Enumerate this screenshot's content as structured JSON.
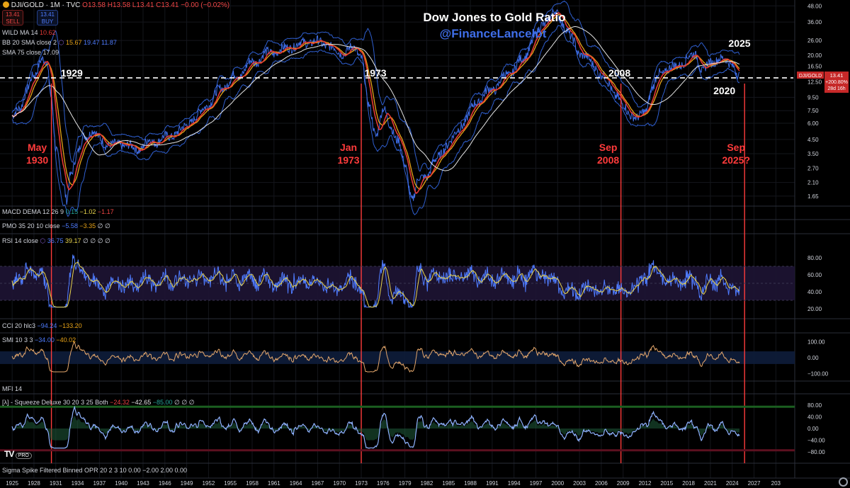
{
  "header": {
    "symbol_line": "DJI/GOLD · 1M · TVC",
    "ohlc": {
      "o": "O13.58",
      "h": "H13.58",
      "l": "L13.41",
      "c": "C13.41",
      "change": "−0.00 (−0.02%)"
    },
    "sell": {
      "price": "13.41",
      "label": "SELL"
    },
    "buy": {
      "price": "13.41",
      "label": "BUY"
    }
  },
  "indicators": {
    "wild_ma": {
      "name": "WILD MA 14",
      "value": "10.62"
    },
    "bb": {
      "name": "BB 20 SMA close 2",
      "v1": "15.67",
      "v2": "19.47",
      "v3": "11.87"
    },
    "sma": {
      "name": "SMA 75 close",
      "value": "17.09"
    },
    "macd": {
      "name": "MACD DEMA 12 26 9",
      "v1": "0.15",
      "v2": "−1.02",
      "v3": "−1.17"
    },
    "pmo": {
      "name": "PMO 35 20 10 close",
      "v1": "−5.58",
      "v2": "−3.35",
      "rest": "∅ ∅"
    },
    "rsi": {
      "name": "RSI 14 close",
      "v1": "36.75",
      "v2": "39.17",
      "rest": "∅ ∅ ∅ ∅"
    },
    "cci": {
      "name": "CCI 20 hlc3",
      "v1": "−94.24",
      "v2": "−133.20"
    },
    "smi": {
      "name": "SMI 10 3 3",
      "v1": "−34.00",
      "v2": "−40.02"
    },
    "mfi": {
      "name": "MFI 14"
    },
    "squeeze": {
      "name": "[λ] - Squeeze Deluxe 30 20 3 25 Both",
      "v1": "−24.32",
      "v2": "−42.65",
      "v3": "−85.00",
      "rest": "∅ ∅ ∅"
    },
    "sigma": {
      "name": "Sigma Spike Filtered Binned OPR 20 2 3 10",
      "v1": "0.00",
      "v2": "−2.00",
      "v3": "2.00",
      "v4": "0.00"
    }
  },
  "price_tag": {
    "symbol": "DJI/GOLD",
    "value": "13.41",
    "pct": "+200.80%",
    "countdown": "28d 16h"
  },
  "branding": {
    "logo": "TV",
    "pro": "PRO"
  },
  "chart_data": {
    "type": "line",
    "title": "Dow Jones to Gold Ratio",
    "subtitle": "@FinanceLancelot",
    "yscale": "log",
    "ylim": [
      1.4,
      50
    ],
    "xlim": [
      1924.5,
      2032.5
    ],
    "colors": {
      "price": "#3f6ee8",
      "wild_ma": "#e53935",
      "bb_mid": "#e8a317",
      "bb_band": "#2f5fd0",
      "sma75": "#e6e6e6",
      "annotation": "#ff3b3b",
      "level_line": "#ffffff",
      "rsi": "#4f7cff",
      "rsi_signal": "#e8d44d",
      "smi": "#e3a66b"
    },
    "y_ticks": [
      "48.00",
      "36.00",
      "26.00",
      "20.00",
      "16.50",
      "12.50",
      "9.50",
      "7.50",
      "6.00",
      "4.50",
      "3.50",
      "2.70",
      "2.10",
      "1.65"
    ],
    "x_ticks": [
      "1925",
      "1928",
      "1931",
      "1934",
      "1937",
      "1940",
      "1943",
      "1946",
      "1949",
      "1952",
      "1955",
      "1958",
      "1961",
      "1964",
      "1967",
      "1970",
      "1973",
      "1976",
      "1979",
      "1982",
      "1985",
      "1988",
      "1991",
      "1994",
      "1997",
      "2000",
      "2003",
      "2006",
      "2009",
      "2012",
      "2015",
      "2018",
      "2021",
      "2024",
      "2027",
      "203"
    ],
    "level_line": 13.41,
    "series": {
      "x": [
        1925,
        1926,
        1927,
        1928,
        1929,
        1929.7,
        1930.4,
        1931,
        1932,
        1932.5,
        1933,
        1934,
        1935,
        1936,
        1937,
        1938,
        1939,
        1940,
        1942,
        1944,
        1946,
        1948,
        1950,
        1952,
        1954,
        1956,
        1958,
        1960,
        1962,
        1964,
        1966,
        1968,
        1970,
        1972,
        1973,
        1974,
        1975,
        1976,
        1977,
        1978,
        1979,
        1980,
        1981,
        1982,
        1983,
        1985,
        1987,
        1989,
        1991,
        1993,
        1995,
        1997,
        1998,
        1999,
        1999.7,
        2000.5,
        2001,
        2002,
        2003,
        2005,
        2006,
        2007,
        2008,
        2009,
        2010,
        2011,
        2012,
        2013,
        2014,
        2015,
        2016,
        2017,
        2018,
        2019,
        2020,
        2021,
        2022,
        2023,
        2024,
        2025
      ],
      "values": [
        6.5,
        8,
        10.5,
        14,
        19,
        17,
        9.5,
        4,
        2,
        1.5,
        2.5,
        3.5,
        4.8,
        5.3,
        4.5,
        4.2,
        4,
        4.2,
        3.8,
        4.3,
        4.6,
        5.2,
        6.5,
        8.5,
        11.5,
        14,
        17.5,
        20.5,
        22,
        24,
        25.5,
        24.5,
        21,
        22.5,
        20,
        8,
        5,
        7.5,
        5.8,
        4.5,
        2.8,
        1.6,
        2.2,
        2.4,
        3,
        4.2,
        6,
        9,
        11,
        14,
        18,
        28,
        35,
        40,
        42,
        38,
        33,
        26,
        21,
        17,
        14,
        12,
        10,
        8,
        7.2,
        6.4,
        7.5,
        11,
        14.5,
        15.5,
        16,
        17.5,
        19,
        20.5,
        15,
        17.5,
        19,
        18,
        17.5,
        13.41
      ]
    },
    "annotations": {
      "peaks": [
        {
          "label": "1929",
          "x": 1929.3
        },
        {
          "label": "1973",
          "x": 1973
        },
        {
          "label": "2008",
          "x": 2008.5
        },
        {
          "label": "2020",
          "x": 2020
        },
        {
          "label": "2025",
          "x": 2025
        }
      ],
      "breaks": [
        {
          "label1": "May",
          "label2": "1930",
          "x": 1930.4
        },
        {
          "label1": "Jan",
          "label2": "1973",
          "x": 1973
        },
        {
          "label1": "Sep",
          "label2": "2008",
          "x": 2008.7
        },
        {
          "label1": "Sep",
          "label2": "2025?",
          "x": 2025.7
        }
      ]
    },
    "rsi_ticks": [
      "80.00",
      "60.00",
      "40.00",
      "20.00"
    ],
    "smi_ticks": [
      "100.00",
      "0.00",
      "−100.00"
    ],
    "squeeze_ticks": [
      "80.00",
      "40.00",
      "0.00",
      "−40.00",
      "−80.00"
    ]
  }
}
